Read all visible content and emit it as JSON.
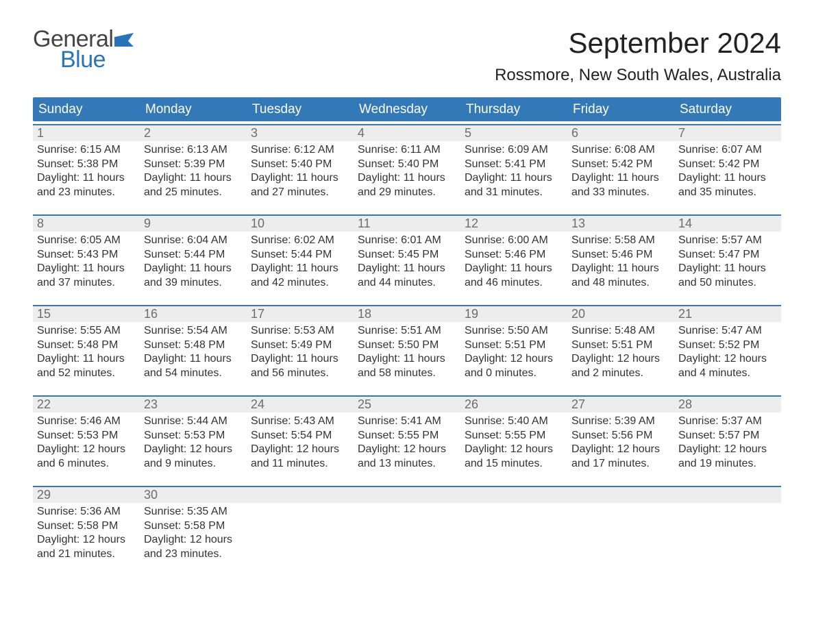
{
  "logo": {
    "word1": "General",
    "word2": "Blue",
    "flag_color": "#2a73b8"
  },
  "title": "September 2024",
  "location": "Rossmore, New South Wales, Australia",
  "colors": {
    "header_bg": "#3379b7",
    "header_text": "#ffffff",
    "daynum_bg": "#ededed",
    "daynum_text": "#6d6d6d",
    "body_text": "#333333",
    "week_border": "#3379b7"
  },
  "day_names": [
    "Sunday",
    "Monday",
    "Tuesday",
    "Wednesday",
    "Thursday",
    "Friday",
    "Saturday"
  ],
  "weeks": [
    [
      {
        "n": "1",
        "sunrise": "Sunrise: 6:15 AM",
        "sunset": "Sunset: 5:38 PM",
        "day1": "Daylight: 11 hours",
        "day2": "and 23 minutes."
      },
      {
        "n": "2",
        "sunrise": "Sunrise: 6:13 AM",
        "sunset": "Sunset: 5:39 PM",
        "day1": "Daylight: 11 hours",
        "day2": "and 25 minutes."
      },
      {
        "n": "3",
        "sunrise": "Sunrise: 6:12 AM",
        "sunset": "Sunset: 5:40 PM",
        "day1": "Daylight: 11 hours",
        "day2": "and 27 minutes."
      },
      {
        "n": "4",
        "sunrise": "Sunrise: 6:11 AM",
        "sunset": "Sunset: 5:40 PM",
        "day1": "Daylight: 11 hours",
        "day2": "and 29 minutes."
      },
      {
        "n": "5",
        "sunrise": "Sunrise: 6:09 AM",
        "sunset": "Sunset: 5:41 PM",
        "day1": "Daylight: 11 hours",
        "day2": "and 31 minutes."
      },
      {
        "n": "6",
        "sunrise": "Sunrise: 6:08 AM",
        "sunset": "Sunset: 5:42 PM",
        "day1": "Daylight: 11 hours",
        "day2": "and 33 minutes."
      },
      {
        "n": "7",
        "sunrise": "Sunrise: 6:07 AM",
        "sunset": "Sunset: 5:42 PM",
        "day1": "Daylight: 11 hours",
        "day2": "and 35 minutes."
      }
    ],
    [
      {
        "n": "8",
        "sunrise": "Sunrise: 6:05 AM",
        "sunset": "Sunset: 5:43 PM",
        "day1": "Daylight: 11 hours",
        "day2": "and 37 minutes."
      },
      {
        "n": "9",
        "sunrise": "Sunrise: 6:04 AM",
        "sunset": "Sunset: 5:44 PM",
        "day1": "Daylight: 11 hours",
        "day2": "and 39 minutes."
      },
      {
        "n": "10",
        "sunrise": "Sunrise: 6:02 AM",
        "sunset": "Sunset: 5:44 PM",
        "day1": "Daylight: 11 hours",
        "day2": "and 42 minutes."
      },
      {
        "n": "11",
        "sunrise": "Sunrise: 6:01 AM",
        "sunset": "Sunset: 5:45 PM",
        "day1": "Daylight: 11 hours",
        "day2": "and 44 minutes."
      },
      {
        "n": "12",
        "sunrise": "Sunrise: 6:00 AM",
        "sunset": "Sunset: 5:46 PM",
        "day1": "Daylight: 11 hours",
        "day2": "and 46 minutes."
      },
      {
        "n": "13",
        "sunrise": "Sunrise: 5:58 AM",
        "sunset": "Sunset: 5:46 PM",
        "day1": "Daylight: 11 hours",
        "day2": "and 48 minutes."
      },
      {
        "n": "14",
        "sunrise": "Sunrise: 5:57 AM",
        "sunset": "Sunset: 5:47 PM",
        "day1": "Daylight: 11 hours",
        "day2": "and 50 minutes."
      }
    ],
    [
      {
        "n": "15",
        "sunrise": "Sunrise: 5:55 AM",
        "sunset": "Sunset: 5:48 PM",
        "day1": "Daylight: 11 hours",
        "day2": "and 52 minutes."
      },
      {
        "n": "16",
        "sunrise": "Sunrise: 5:54 AM",
        "sunset": "Sunset: 5:48 PM",
        "day1": "Daylight: 11 hours",
        "day2": "and 54 minutes."
      },
      {
        "n": "17",
        "sunrise": "Sunrise: 5:53 AM",
        "sunset": "Sunset: 5:49 PM",
        "day1": "Daylight: 11 hours",
        "day2": "and 56 minutes."
      },
      {
        "n": "18",
        "sunrise": "Sunrise: 5:51 AM",
        "sunset": "Sunset: 5:50 PM",
        "day1": "Daylight: 11 hours",
        "day2": "and 58 minutes."
      },
      {
        "n": "19",
        "sunrise": "Sunrise: 5:50 AM",
        "sunset": "Sunset: 5:51 PM",
        "day1": "Daylight: 12 hours",
        "day2": "and 0 minutes."
      },
      {
        "n": "20",
        "sunrise": "Sunrise: 5:48 AM",
        "sunset": "Sunset: 5:51 PM",
        "day1": "Daylight: 12 hours",
        "day2": "and 2 minutes."
      },
      {
        "n": "21",
        "sunrise": "Sunrise: 5:47 AM",
        "sunset": "Sunset: 5:52 PM",
        "day1": "Daylight: 12 hours",
        "day2": "and 4 minutes."
      }
    ],
    [
      {
        "n": "22",
        "sunrise": "Sunrise: 5:46 AM",
        "sunset": "Sunset: 5:53 PM",
        "day1": "Daylight: 12 hours",
        "day2": "and 6 minutes."
      },
      {
        "n": "23",
        "sunrise": "Sunrise: 5:44 AM",
        "sunset": "Sunset: 5:53 PM",
        "day1": "Daylight: 12 hours",
        "day2": "and 9 minutes."
      },
      {
        "n": "24",
        "sunrise": "Sunrise: 5:43 AM",
        "sunset": "Sunset: 5:54 PM",
        "day1": "Daylight: 12 hours",
        "day2": "and 11 minutes."
      },
      {
        "n": "25",
        "sunrise": "Sunrise: 5:41 AM",
        "sunset": "Sunset: 5:55 PM",
        "day1": "Daylight: 12 hours",
        "day2": "and 13 minutes."
      },
      {
        "n": "26",
        "sunrise": "Sunrise: 5:40 AM",
        "sunset": "Sunset: 5:55 PM",
        "day1": "Daylight: 12 hours",
        "day2": "and 15 minutes."
      },
      {
        "n": "27",
        "sunrise": "Sunrise: 5:39 AM",
        "sunset": "Sunset: 5:56 PM",
        "day1": "Daylight: 12 hours",
        "day2": "and 17 minutes."
      },
      {
        "n": "28",
        "sunrise": "Sunrise: 5:37 AM",
        "sunset": "Sunset: 5:57 PM",
        "day1": "Daylight: 12 hours",
        "day2": "and 19 minutes."
      }
    ],
    [
      {
        "n": "29",
        "sunrise": "Sunrise: 5:36 AM",
        "sunset": "Sunset: 5:58 PM",
        "day1": "Daylight: 12 hours",
        "day2": "and 21 minutes."
      },
      {
        "n": "30",
        "sunrise": "Sunrise: 5:35 AM",
        "sunset": "Sunset: 5:58 PM",
        "day1": "Daylight: 12 hours",
        "day2": "and 23 minutes."
      },
      {
        "empty": true
      },
      {
        "empty": true
      },
      {
        "empty": true
      },
      {
        "empty": true
      },
      {
        "empty": true
      }
    ]
  ]
}
